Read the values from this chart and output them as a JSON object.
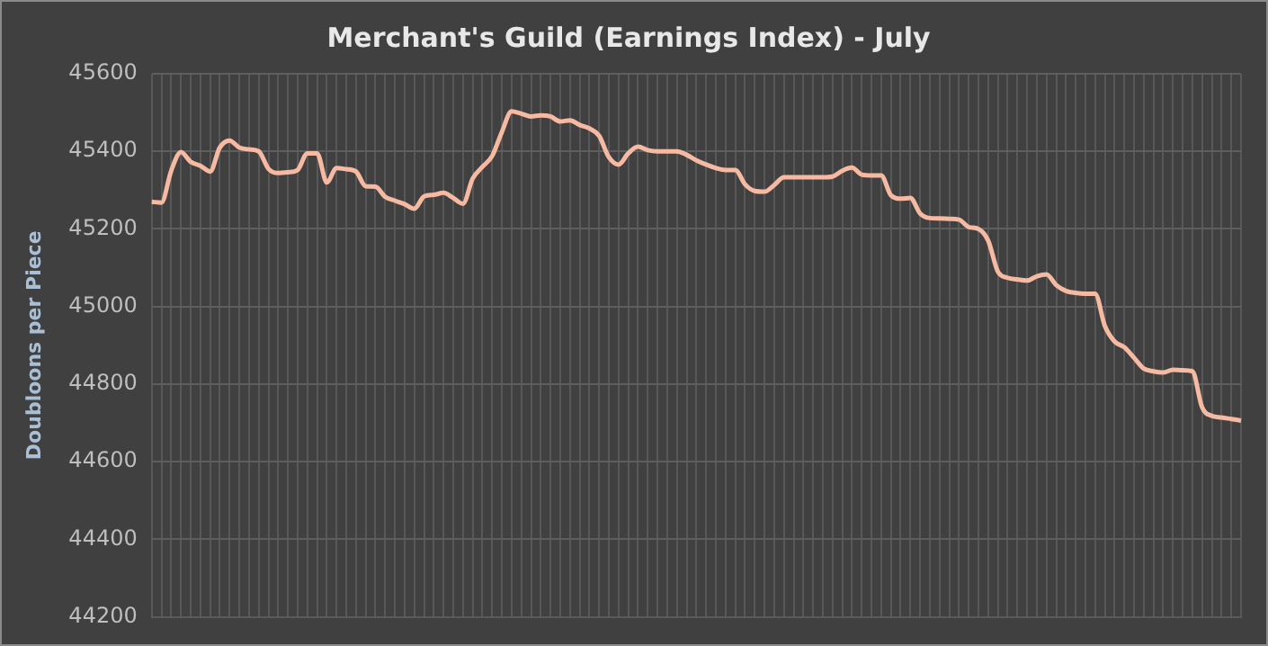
{
  "chart_data": {
    "type": "line",
    "title": "Merchant's Guild (Earnings Index) - July",
    "ylabel": "Doubloons per Piece",
    "categories": [
      null,
      null,
      null,
      null,
      null,
      null,
      null,
      null,
      null,
      null,
      null,
      null,
      null,
      null,
      null,
      null,
      null,
      null,
      null,
      null,
      null,
      null,
      null,
      null,
      null,
      null,
      null,
      null,
      null,
      null,
      null,
      null,
      null,
      null,
      null,
      null,
      null,
      null,
      null,
      null,
      null,
      null,
      null,
      null,
      null,
      null,
      null,
      null,
      null,
      null,
      null,
      null,
      null,
      null,
      null,
      null,
      null,
      null,
      null,
      null,
      null,
      null,
      null,
      null,
      null,
      null,
      null,
      null,
      null,
      null,
      null,
      null,
      null,
      null,
      null,
      null,
      null,
      null,
      null,
      null,
      null,
      null,
      null,
      null,
      null,
      null,
      null,
      null,
      null,
      null,
      null,
      null,
      null,
      null,
      null,
      null,
      null,
      null,
      null,
      null,
      null,
      null,
      null,
      null,
      null,
      null,
      null,
      null,
      null,
      null,
      null,
      null,
      null
    ],
    "series": [
      {
        "color": "#f6b9a2",
        "values": [
          45270,
          45268,
          45350,
          45398,
          45373,
          45363,
          45348,
          45410,
          45428,
          45410,
          45405,
          45400,
          45355,
          45344,
          45346,
          45352,
          45395,
          45395,
          45320,
          45357,
          45354,
          45348,
          45310,
          45309,
          45283,
          45273,
          45264,
          45252,
          45284,
          45288,
          45293,
          45280,
          45265,
          45330,
          45360,
          45388,
          45450,
          45503,
          45497,
          45490,
          45493,
          45490,
          45477,
          45480,
          45468,
          45459,
          45440,
          45385,
          45366,
          45395,
          45412,
          45403,
          45400,
          45400,
          45400,
          45391,
          45377,
          45366,
          45357,
          45352,
          45352,
          45315,
          45298,
          45296,
          45313,
          45333,
          45333,
          45333,
          45333,
          45333,
          45335,
          45350,
          45358,
          45340,
          45338,
          45338,
          45287,
          45278,
          45280,
          45240,
          45228,
          45227,
          45226,
          45224,
          45205,
          45200,
          45170,
          45090,
          45074,
          45070,
          45067,
          45078,
          45083,
          45055,
          45040,
          45035,
          45033,
          45033,
          44950,
          44910,
          44895,
          44868,
          44840,
          44833,
          44830,
          44837,
          44836,
          44833,
          44740,
          44718,
          44714,
          44710,
          44706
        ]
      }
    ],
    "ylim": [
      44200,
      45600
    ],
    "yticks": [
      44200,
      44400,
      44600,
      44800,
      45000,
      45200,
      45400,
      45600
    ],
    "grid": true,
    "legend": false,
    "marker": "none",
    "line_style": "solid",
    "tick_labels": "y"
  }
}
